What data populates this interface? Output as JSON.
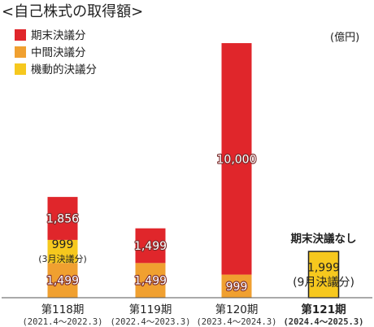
{
  "colors": {
    "year_end": "#e0262b",
    "interim": "#f0a030",
    "flexible": "#f6c81e",
    "axis": "#555555"
  },
  "chart_data": {
    "type": "bar",
    "stacked": true,
    "title": "<自己株式の取得額>",
    "unit": "(億円)",
    "legend_position": "top-left",
    "legend": [
      "期末決議分",
      "中間決議分",
      "機動的決議分"
    ],
    "categories": [
      {
        "label": "第118期",
        "period": "(2021.4～2022.3)",
        "bold": false
      },
      {
        "label": "第119期",
        "period": "(2022.4～2023.3)",
        "bold": false
      },
      {
        "label": "第120期",
        "period": "(2023.4～2024.3)",
        "bold": false
      },
      {
        "label": "第121期",
        "period": "(2024.4～2025.3)",
        "bold": true
      }
    ],
    "series": [
      {
        "name": "中間決議分",
        "values": [
          1499,
          1499,
          999,
          null
        ]
      },
      {
        "name": "機動的決議分",
        "values": [
          999,
          null,
          null,
          1999
        ]
      },
      {
        "name": "期末決議分",
        "values": [
          1856,
          1499,
          10000,
          null
        ]
      }
    ],
    "segment_labels": {
      "中間決議分": [
        "1,499",
        "1,499",
        "999",
        ""
      ],
      "機動的決議分": [
        "999",
        "",
        "",
        "1,999"
      ],
      "期末決議分": [
        "1,856",
        "1,499",
        "10,000",
        ""
      ]
    },
    "segment_notes": {
      "機動的決議分": [
        "(3月決議分)",
        "",
        "",
        "(9月決議分)"
      ]
    },
    "annotations": [
      {
        "category_index": 3,
        "text": "期末決議なし"
      }
    ]
  }
}
